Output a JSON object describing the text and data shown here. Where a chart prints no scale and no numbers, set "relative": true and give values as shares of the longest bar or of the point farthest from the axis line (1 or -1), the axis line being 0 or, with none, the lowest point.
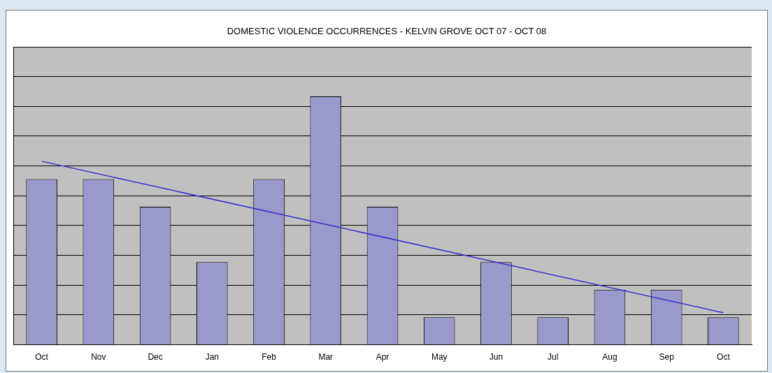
{
  "chart_data": {
    "type": "bar",
    "title": "DOMESTIC VIOLENCE OCCURRENCES - KELVIN GROVE OCT 07 - OCT 08",
    "relative": true,
    "grid": "y",
    "legend": false,
    "categories": [
      "Oct",
      "Nov",
      "Dec",
      "Jan",
      "Feb",
      "Mar",
      "Apr",
      "May",
      "Jun",
      "Jul",
      "Aug",
      "Sep",
      "Oct"
    ],
    "series": [
      {
        "color": "#9999cc",
        "values": [
          0.667,
          0.667,
          0.556,
          0.333,
          0.667,
          1,
          0.556,
          0.111,
          0.333,
          0.111,
          0.222,
          0.222,
          0.111
        ]
      },
      {
        "type": "line",
        "color": "#3333cc",
        "marker": "none",
        "values": [
          0.739,
          null,
          null,
          null,
          null,
          null,
          null,
          null,
          null,
          null,
          null,
          null,
          0.129
        ]
      }
    ]
  }
}
